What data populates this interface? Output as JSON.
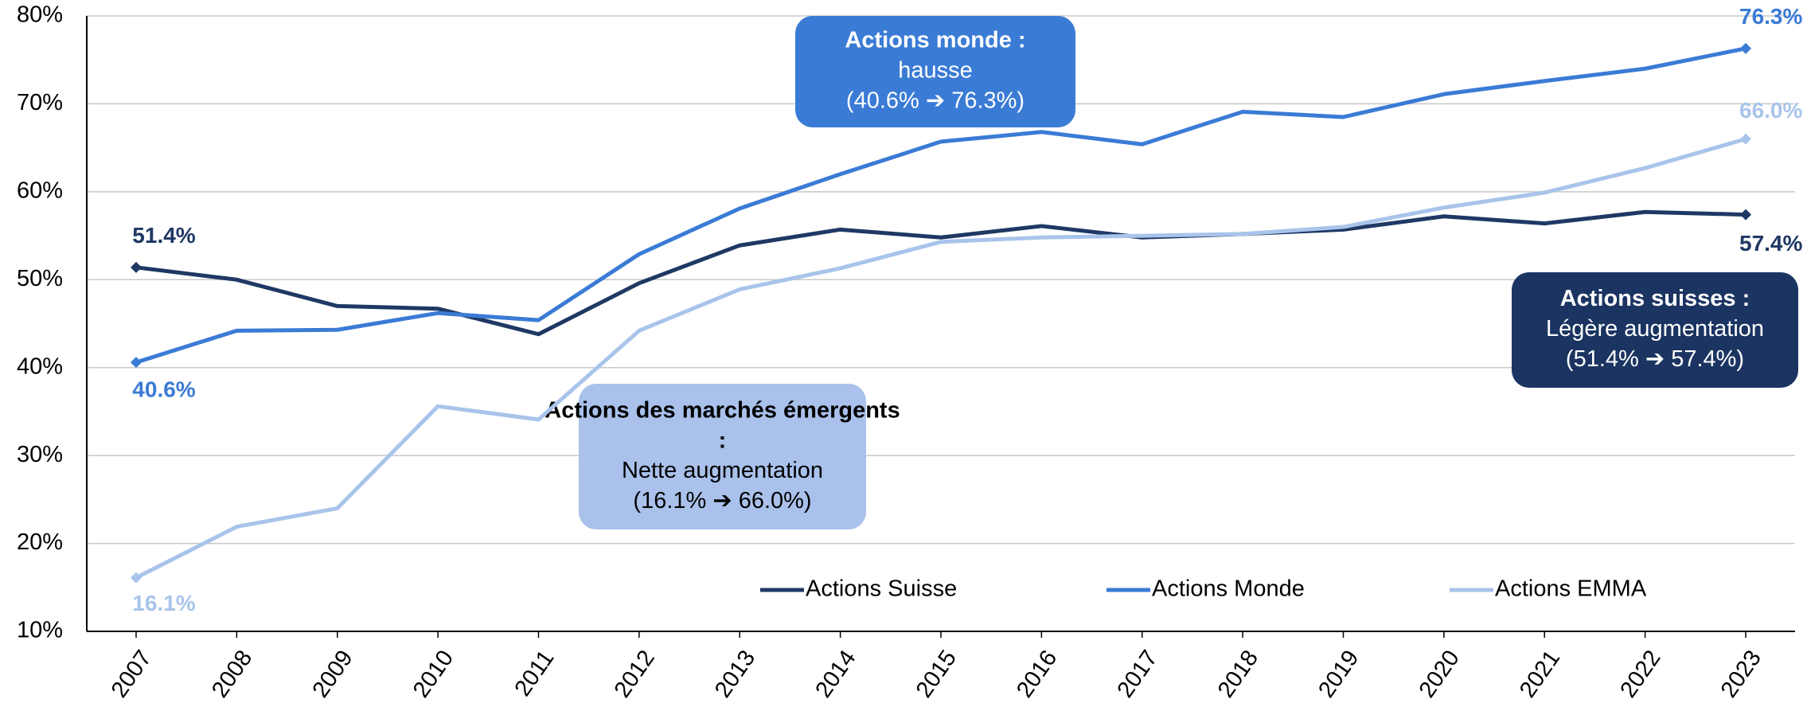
{
  "chart_data": {
    "type": "line",
    "categories": [
      "2007",
      "2008",
      "2009",
      "2010",
      "2011",
      "2012",
      "2013",
      "2014",
      "2015",
      "2016",
      "2017",
      "2018",
      "2019",
      "2020",
      "2021",
      "2022",
      "2023"
    ],
    "series": [
      {
        "name": "Actions Suisse",
        "color": "#1f3864",
        "values": [
          51.4,
          50.0,
          47.0,
          46.7,
          43.8,
          49.6,
          53.9,
          55.7,
          54.8,
          56.1,
          54.8,
          55.2,
          55.7,
          57.2,
          56.4,
          57.7,
          57.4
        ],
        "value_labels": [
          "51.4%",
          null,
          null,
          null,
          null,
          null,
          null,
          null,
          null,
          null,
          null,
          null,
          null,
          null,
          null,
          null,
          "57.4%"
        ]
      },
      {
        "name": "Actions Monde",
        "color": "#3a7bd5",
        "values": [
          40.6,
          44.2,
          44.3,
          46.2,
          45.4,
          52.9,
          58.1,
          62.0,
          65.7,
          66.8,
          65.4,
          69.1,
          68.5,
          71.1,
          72.6,
          74.0,
          76.3
        ],
        "value_labels": [
          "40.6%",
          null,
          null,
          null,
          null,
          null,
          null,
          null,
          null,
          null,
          null,
          null,
          null,
          null,
          null,
          null,
          "76.3%"
        ]
      },
      {
        "name": "Actions EMMA",
        "color": "#a9c4eb",
        "values": [
          16.1,
          21.9,
          24.0,
          35.6,
          34.1,
          44.2,
          48.9,
          51.3,
          54.3,
          54.8,
          55.0,
          55.2,
          56.0,
          58.2,
          59.9,
          62.7,
          66.0
        ],
        "value_labels": [
          "16.1%",
          null,
          null,
          null,
          null,
          null,
          null,
          null,
          null,
          null,
          null,
          null,
          null,
          null,
          null,
          null,
          "66.0%"
        ]
      }
    ],
    "ylim": [
      10,
      80
    ],
    "yticks": [
      {
        "value": 10,
        "label": "10%"
      },
      {
        "value": 20,
        "label": "20%"
      },
      {
        "value": 30,
        "label": "30%"
      },
      {
        "value": 40,
        "label": "40%"
      },
      {
        "value": 50,
        "label": "50%"
      },
      {
        "value": 60,
        "label": "60%"
      },
      {
        "value": 70,
        "label": "70%"
      },
      {
        "value": 80,
        "label": "80%"
      }
    ],
    "grid": true,
    "legend": "bottom",
    "annotations": [
      {
        "title": "Actions monde :",
        "lines": [
          "hausse",
          "(40.6% ➔ 76.3%)"
        ],
        "color": "#3a7bd5",
        "text_color": "#ffffff"
      },
      {
        "title": "Actions des marchés émergents :",
        "lines": [
          "Nette augmentation",
          "(16.1% ➔ 66.0%)"
        ],
        "color": "#a9c1eb",
        "text_color": "#000000"
      },
      {
        "title": "Actions suisses :",
        "lines": [
          "Légère augmentation",
          "(51.4% ➔ 57.4%)"
        ],
        "color": "#1b3461",
        "text_color": "#ffffff"
      }
    ]
  }
}
